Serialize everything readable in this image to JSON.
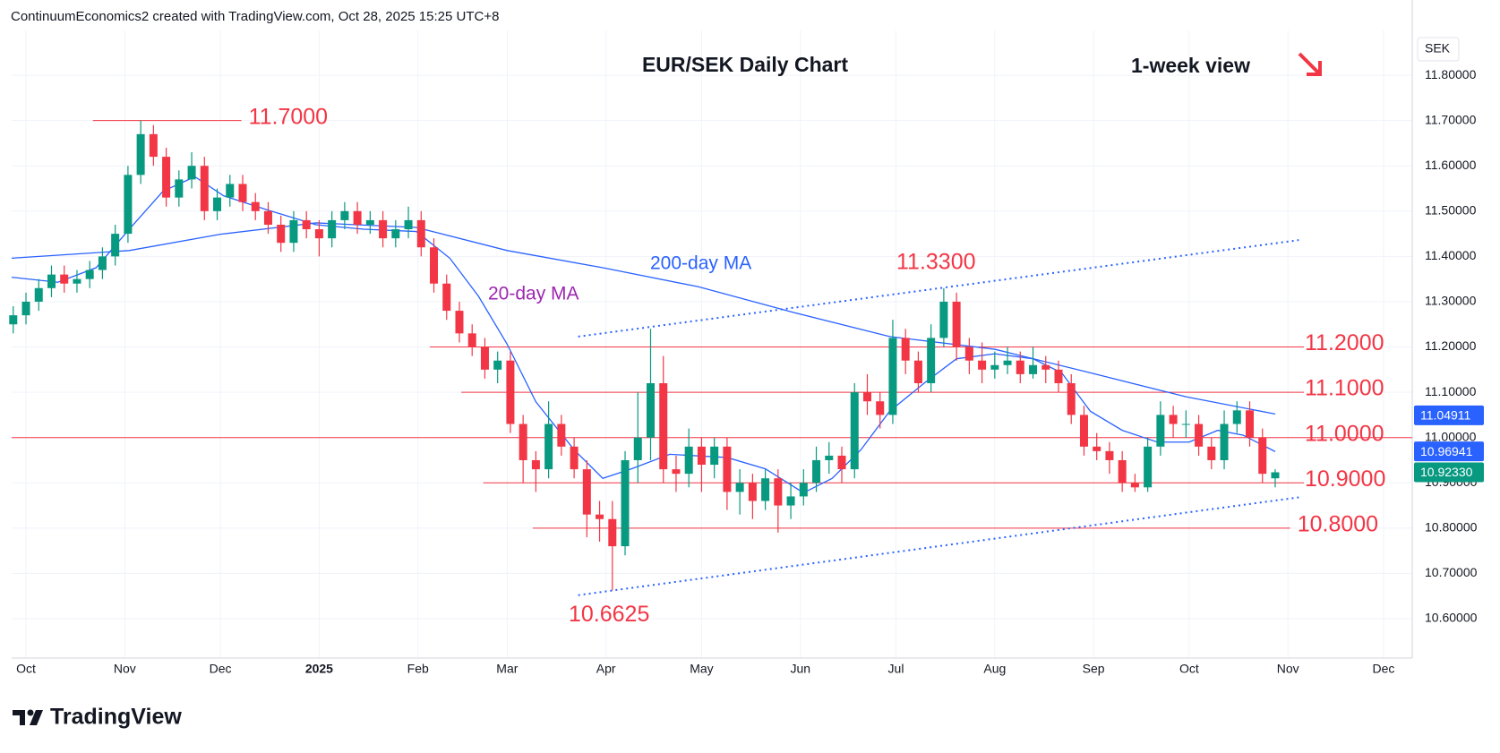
{
  "chart_data": {
    "type": "candlestick",
    "header": "ContinuumEconomics2 created with TradingView.com, Oct 28, 2025 15:25 UTC+8",
    "title": "EUR/SEK Daily Chart",
    "note": "1-week view",
    "currency": "SEK",
    "brand": "TradingView",
    "grid": true,
    "up_color": "#089981",
    "down_color": "#f23645",
    "xlim": [
      -4.5,
      435
    ],
    "xticks": [
      {
        "value": 0,
        "label": "Oct"
      },
      {
        "value": 31,
        "label": "Nov"
      },
      {
        "value": 61,
        "label": "Dec"
      },
      {
        "value": 92,
        "label": "2025"
      },
      {
        "value": 123,
        "label": "Feb"
      },
      {
        "value": 151,
        "label": "Mar"
      },
      {
        "value": 182,
        "label": "Apr"
      },
      {
        "value": 212,
        "label": "May"
      },
      {
        "value": 243,
        "label": "Jun"
      },
      {
        "value": 273,
        "label": "Jul"
      },
      {
        "value": 304,
        "label": "Aug"
      },
      {
        "value": 335,
        "label": "Sep"
      },
      {
        "value": 365,
        "label": "Oct"
      },
      {
        "value": 396,
        "label": "Nov"
      },
      {
        "value": 426,
        "label": "Dec"
      }
    ],
    "ylim": [
      10.513,
      11.899
    ],
    "yticks": [
      {
        "value": 10.6,
        "label": "10.60000"
      },
      {
        "value": 10.7,
        "label": "10.70000"
      },
      {
        "value": 10.8,
        "label": "10.80000"
      },
      {
        "value": 10.9,
        "label": "10.90000"
      },
      {
        "value": 11.0,
        "label": "11.00000"
      },
      {
        "value": 11.1,
        "label": "11.10000"
      },
      {
        "value": 11.2,
        "label": "11.20000"
      },
      {
        "value": 11.3,
        "label": "11.30000"
      },
      {
        "value": 11.4,
        "label": "11.40000"
      },
      {
        "value": 11.5,
        "label": "11.50000"
      },
      {
        "value": 11.6,
        "label": "11.60000"
      },
      {
        "value": 11.7,
        "label": "11.70000"
      },
      {
        "value": 11.8,
        "label": "11.80000"
      }
    ],
    "x": [
      -4,
      0,
      4,
      8,
      12,
      16,
      20,
      24,
      28,
      32,
      36,
      40,
      44,
      48,
      52,
      56,
      60,
      64,
      68,
      72,
      76,
      80,
      84,
      88,
      92,
      96,
      100,
      104,
      108,
      112,
      116,
      120,
      124,
      128,
      132,
      136,
      140,
      144,
      148,
      152,
      156,
      160,
      164,
      168,
      172,
      176,
      180,
      184,
      188,
      192,
      196,
      200,
      204,
      208,
      212,
      216,
      220,
      224,
      228,
      232,
      236,
      240,
      244,
      248,
      252,
      256,
      260,
      264,
      268,
      272,
      276,
      280,
      284,
      288,
      292,
      296,
      300,
      304,
      308,
      312,
      316,
      320,
      324,
      328,
      332,
      336,
      340,
      344,
      348,
      352,
      356,
      360,
      364,
      368,
      372,
      376,
      380,
      384,
      388,
      392
    ],
    "open": [
      11.25,
      11.27,
      11.3,
      11.33,
      11.36,
      11.34,
      11.35,
      11.37,
      11.4,
      11.45,
      11.58,
      11.67,
      11.62,
      11.53,
      11.57,
      11.6,
      11.5,
      11.53,
      11.56,
      11.52,
      11.5,
      11.47,
      11.43,
      11.48,
      11.46,
      11.44,
      11.48,
      11.5,
      11.47,
      11.48,
      11.44,
      11.46,
      11.48,
      11.42,
      11.34,
      11.28,
      11.23,
      11.2,
      11.15,
      11.17,
      11.03,
      10.95,
      10.93,
      11.03,
      10.98,
      10.93,
      10.83,
      10.82,
      10.76,
      10.95,
      11.0,
      11.12,
      10.93,
      10.92,
      10.98,
      10.94,
      10.98,
      10.88,
      10.9,
      10.86,
      10.91,
      10.85,
      10.87,
      10.9,
      10.95,
      10.96,
      10.93,
      11.1,
      11.08,
      11.05,
      11.22,
      11.17,
      11.12,
      11.22,
      11.3,
      11.2,
      11.17,
      11.15,
      11.16,
      11.17,
      11.14,
      11.16,
      11.15,
      11.12,
      11.05,
      10.98,
      10.97,
      10.95,
      10.9,
      10.89,
      10.98,
      11.05,
      11.03,
      11.03,
      10.98,
      10.95,
      11.03,
      11.06,
      11.0,
      10.91
    ],
    "high": [
      11.29,
      11.32,
      11.35,
      11.38,
      11.38,
      11.37,
      11.39,
      11.42,
      11.47,
      11.6,
      11.7,
      11.69,
      11.64,
      11.59,
      11.63,
      11.62,
      11.55,
      11.58,
      11.58,
      11.54,
      11.52,
      11.49,
      11.5,
      11.5,
      11.48,
      11.5,
      11.52,
      11.52,
      11.5,
      11.5,
      11.48,
      11.51,
      11.5,
      11.44,
      11.36,
      11.3,
      11.25,
      11.22,
      11.19,
      11.19,
      11.05,
      10.97,
      11.08,
      11.05,
      11.0,
      10.95,
      10.86,
      10.86,
      10.97,
      11.1,
      11.24,
      11.18,
      10.96,
      11.02,
      11.0,
      11.0,
      11.0,
      10.93,
      10.92,
      10.93,
      10.93,
      10.9,
      10.93,
      10.98,
      10.99,
      10.98,
      11.12,
      11.14,
      11.1,
      11.26,
      11.24,
      11.19,
      11.25,
      11.33,
      11.32,
      11.22,
      11.21,
      11.19,
      11.2,
      11.19,
      11.2,
      11.18,
      11.17,
      11.14,
      11.07,
      11.01,
      10.99,
      10.97,
      10.92,
      11.0,
      11.08,
      11.07,
      11.06,
      11.05,
      11.0,
      11.06,
      11.08,
      11.08,
      11.02,
      10.93
    ],
    "low": [
      11.23,
      11.25,
      11.28,
      11.31,
      11.32,
      11.32,
      11.33,
      11.35,
      11.38,
      11.43,
      11.56,
      11.6,
      11.51,
      11.51,
      11.55,
      11.48,
      11.48,
      11.51,
      11.5,
      11.48,
      11.45,
      11.41,
      11.41,
      11.44,
      11.4,
      11.42,
      11.46,
      11.45,
      11.45,
      11.42,
      11.42,
      11.44,
      11.4,
      11.32,
      11.26,
      11.21,
      11.18,
      11.13,
      11.12,
      11.01,
      10.9,
      10.88,
      10.91,
      10.96,
      10.91,
      10.78,
      10.77,
      10.6625,
      10.74,
      10.9,
      10.95,
      10.9,
      10.88,
      10.89,
      10.88,
      10.91,
      10.84,
      10.83,
      10.82,
      10.84,
      10.79,
      10.82,
      10.85,
      10.88,
      10.92,
      10.9,
      10.91,
      11.05,
      11.02,
      11.03,
      11.14,
      11.1,
      11.1,
      11.2,
      11.17,
      11.14,
      11.12,
      11.13,
      11.14,
      11.12,
      11.13,
      11.12,
      11.1,
      11.03,
      10.96,
      10.95,
      10.92,
      10.88,
      10.88,
      10.88,
      10.96,
      11.0,
      11.0,
      10.96,
      10.93,
      10.93,
      11.01,
      10.98,
      10.9,
      10.89
    ],
    "close": [
      11.27,
      11.3,
      11.33,
      11.36,
      11.34,
      11.35,
      11.37,
      11.4,
      11.45,
      11.58,
      11.67,
      11.62,
      11.53,
      11.57,
      11.6,
      11.5,
      11.53,
      11.56,
      11.52,
      11.5,
      11.47,
      11.43,
      11.48,
      11.46,
      11.44,
      11.48,
      11.5,
      11.47,
      11.48,
      11.44,
      11.46,
      11.48,
      11.42,
      11.34,
      11.28,
      11.23,
      11.2,
      11.15,
      11.17,
      11.03,
      10.95,
      10.93,
      11.03,
      10.98,
      10.93,
      10.83,
      10.82,
      10.76,
      10.95,
      11.0,
      11.12,
      10.93,
      10.92,
      10.98,
      10.94,
      10.98,
      10.88,
      10.9,
      10.86,
      10.91,
      10.85,
      10.87,
      10.9,
      10.95,
      10.96,
      10.93,
      11.1,
      11.08,
      11.05,
      11.22,
      11.17,
      11.12,
      11.22,
      11.3,
      11.2,
      11.17,
      11.15,
      11.16,
      11.17,
      11.14,
      11.16,
      11.15,
      11.12,
      11.05,
      10.98,
      10.97,
      10.95,
      10.9,
      10.89,
      10.98,
      11.05,
      11.03,
      11.03,
      10.98,
      10.95,
      11.03,
      11.06,
      11.0,
      10.92,
      10.9233
    ],
    "moving_averages": [
      {
        "name": "200-day MA",
        "color": "#2962ff",
        "label_color": "#2962ff",
        "x": [
          -4.5,
          32.4,
          61,
          91,
          122.5,
          151,
          181,
          211,
          241,
          271,
          304,
          334,
          364,
          392
        ],
        "values": [
          11.396,
          11.413,
          11.449,
          11.474,
          11.464,
          11.413,
          11.375,
          11.333,
          11.276,
          11.223,
          11.195,
          11.143,
          11.09,
          11.052
        ]
      },
      {
        "name": "20-day MA",
        "color": "#2962ff",
        "label_color": "#9c27b0",
        "x": [
          -4.5,
          10,
          22,
          32.4,
          43,
          53,
          62,
          76,
          91,
          106,
          122.5,
          133,
          142,
          151,
          160,
          172,
          181,
          190,
          202,
          220,
          232,
          244,
          253,
          262,
          271,
          282,
          292,
          304,
          316,
          325,
          334,
          344,
          355,
          365,
          374,
          382,
          392
        ],
        "values": [
          11.354,
          11.343,
          11.375,
          11.46,
          11.544,
          11.576,
          11.534,
          11.502,
          11.47,
          11.46,
          11.455,
          11.396,
          11.312,
          11.206,
          11.079,
          10.973,
          10.91,
          10.931,
          10.963,
          10.956,
          10.931,
          10.878,
          10.91,
          10.973,
          11.058,
          11.121,
          11.174,
          11.185,
          11.174,
          11.143,
          11.058,
          11.016,
          10.99,
          10.99,
          11.016,
          11.005,
          10.969
        ]
      }
    ],
    "trendlines": [
      {
        "x": [
          173.3,
          399.4
        ],
        "values": [
          11.223,
          11.436
        ]
      },
      {
        "x": [
          173.3,
          399.4
        ],
        "values": [
          10.652,
          10.868
        ]
      }
    ],
    "levels": [
      {
        "value": 11.7,
        "label": "11.7000",
        "from": 21,
        "to": 67.6
      },
      {
        "value": 11.2,
        "label": "11.2000",
        "from": 126.7,
        "to": 401
      },
      {
        "value": 11.1,
        "label": "11.1000",
        "from": 136.6,
        "to": 401
      },
      {
        "value": 11.0,
        "label": "11.0000",
        "from": -4.5,
        "to": 435
      },
      {
        "value": 10.9,
        "label": "10.9000",
        "from": 143.5,
        "to": 401
      },
      {
        "value": 10.8,
        "label": "10.8000",
        "from": 159,
        "to": 396.7
      }
    ],
    "annotations": [
      {
        "text": "11.3300",
        "value": 11.33
      },
      {
        "text": "10.6625",
        "value": 10.6625
      }
    ],
    "price_labels": [
      {
        "value": 11.04911,
        "label": "11.04911",
        "color": "#2962ff"
      },
      {
        "value": 10.96941,
        "label": "10.96941",
        "color": "#2962ff"
      },
      {
        "value": 10.9233,
        "label": "10.92330",
        "color": "#089981"
      }
    ]
  }
}
